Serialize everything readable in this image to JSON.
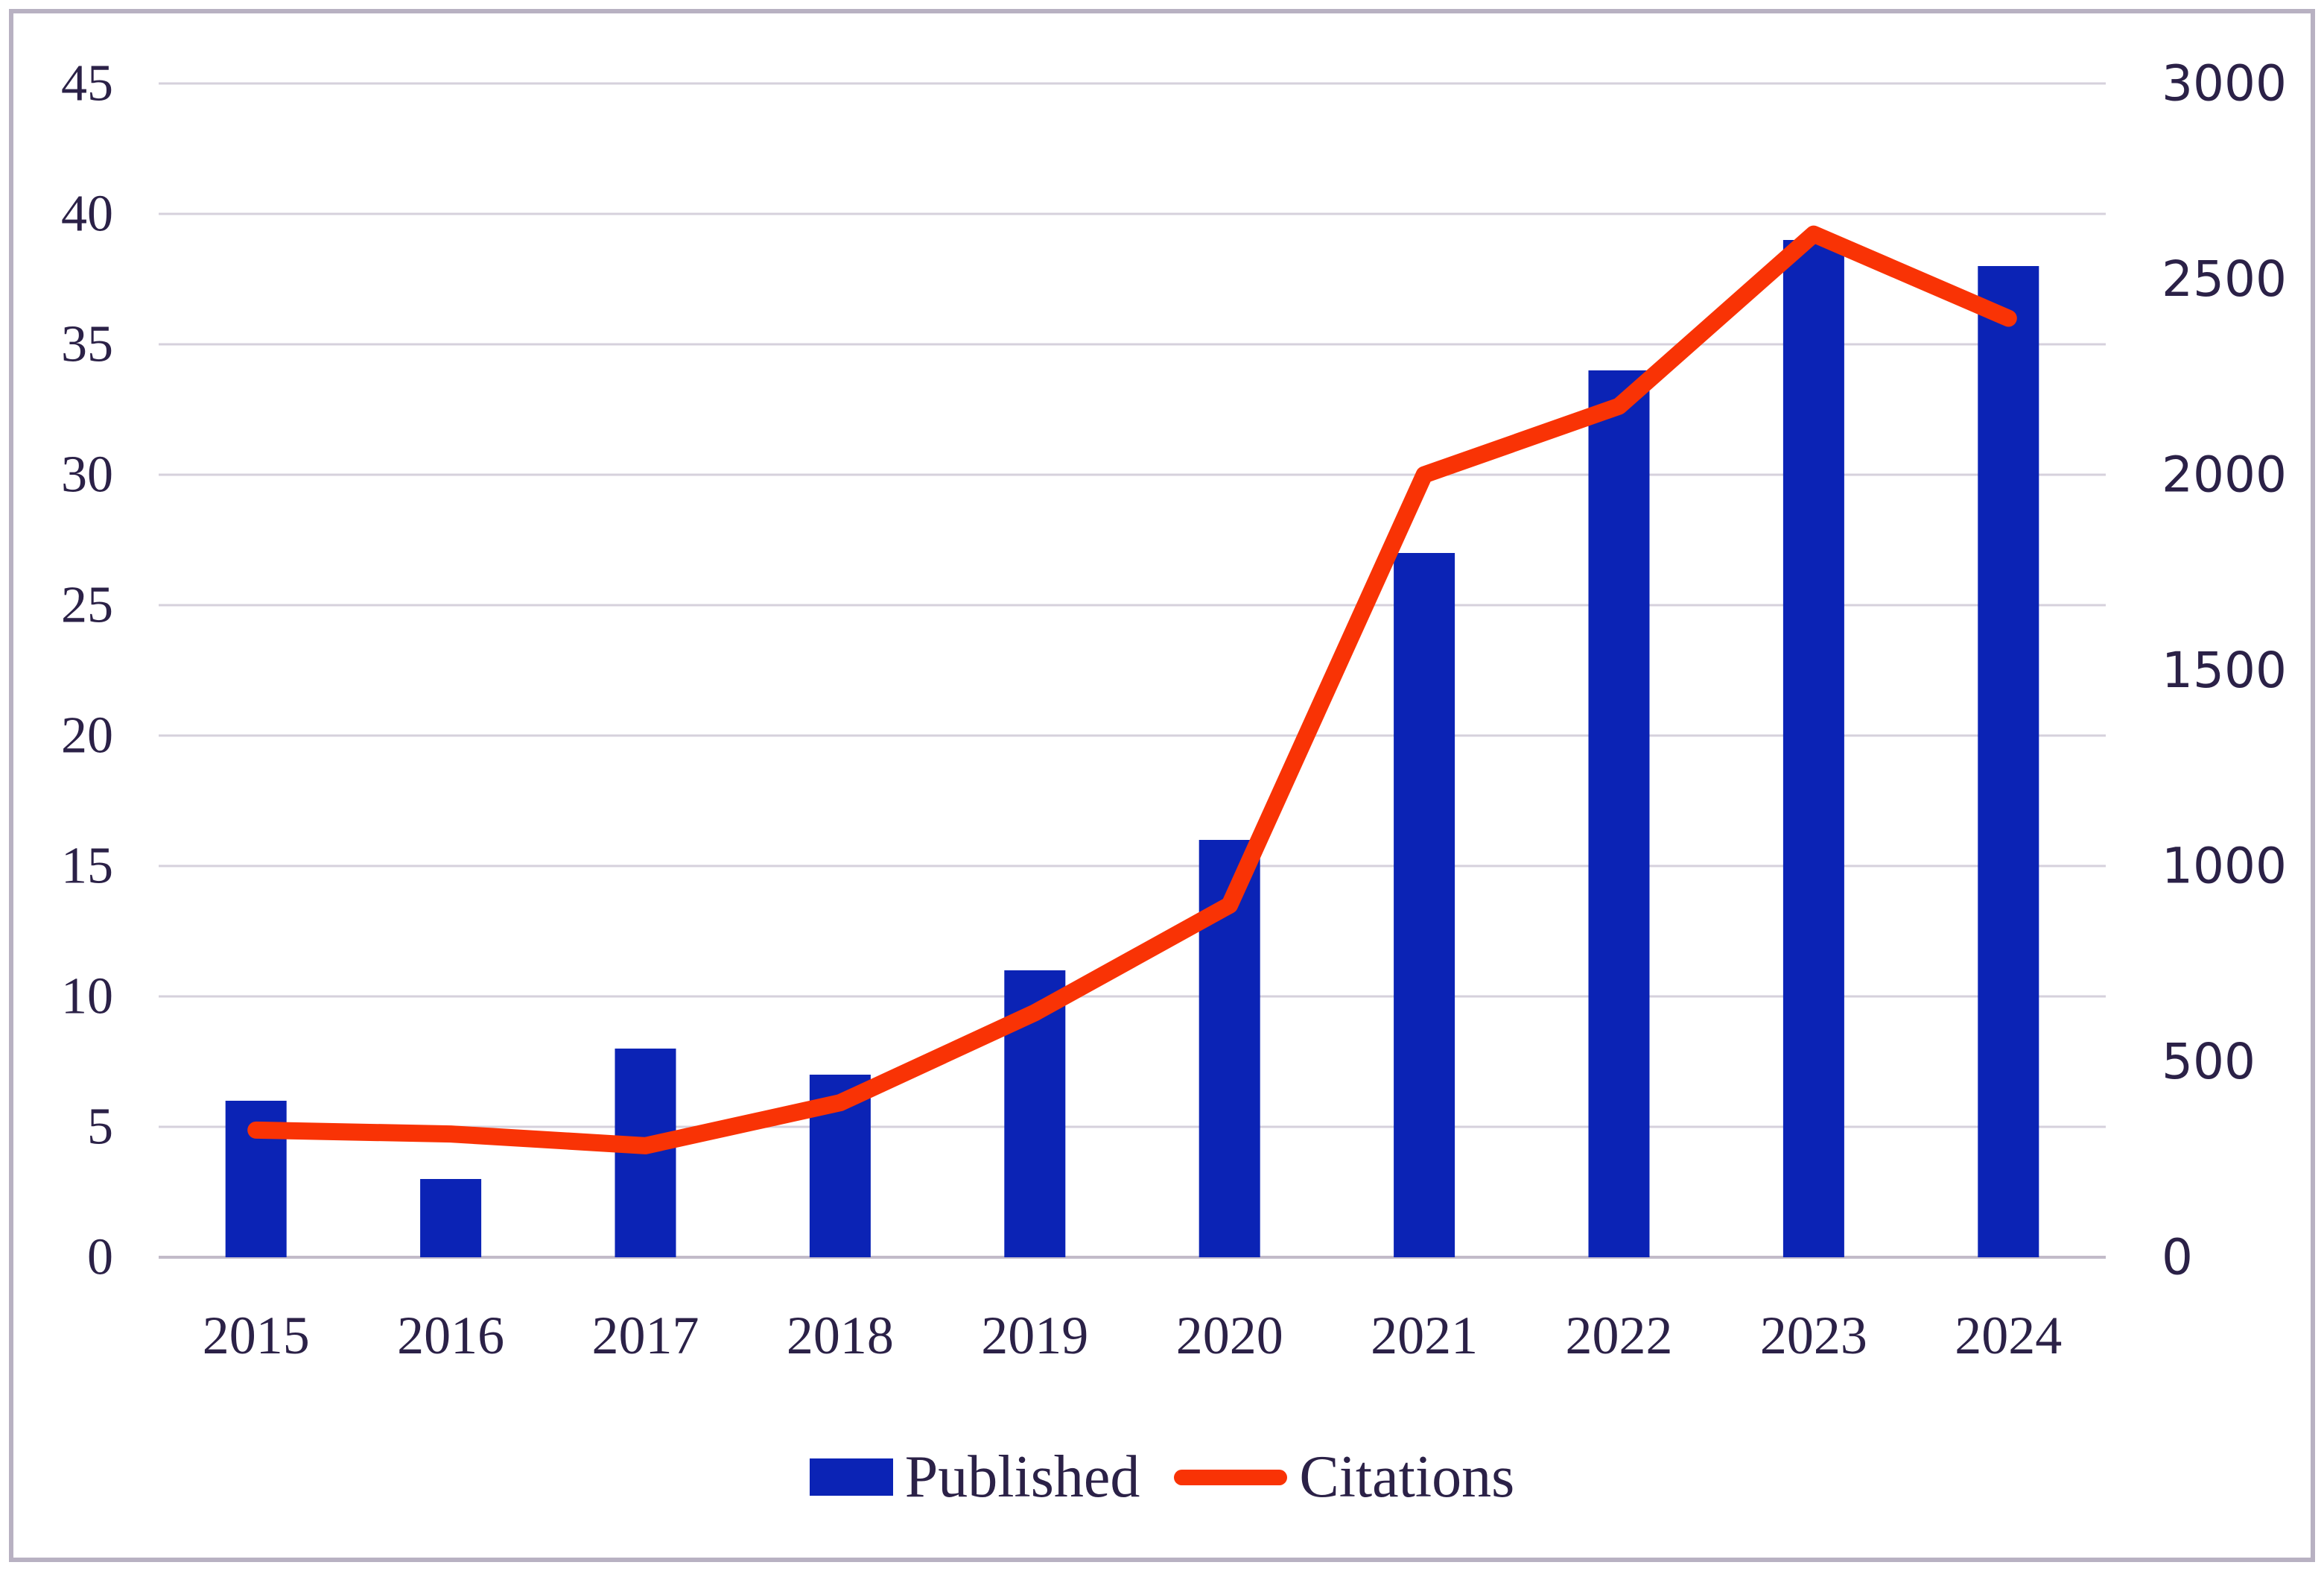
{
  "chart_data": {
    "type": "bar+line",
    "title": "",
    "categories": [
      "2015",
      "2016",
      "2017",
      "2018",
      "2019",
      "2020",
      "2021",
      "2022",
      "2023",
      "2024"
    ],
    "series": [
      {
        "name": "Published",
        "type": "bar",
        "axis": "left",
        "values": [
          6,
          3,
          8,
          7,
          11,
          16,
          27,
          34,
          39,
          38
        ]
      },
      {
        "name": "Citations",
        "type": "line",
        "axis": "right",
        "values": [
          325,
          315,
          285,
          395,
          625,
          900,
          2000,
          2175,
          2615,
          2400
        ]
      }
    ],
    "left_axis": {
      "min": 0,
      "max": 45,
      "step": 5,
      "tick_labels": [
        "0",
        "5",
        "10",
        "15",
        "20",
        "25",
        "30",
        "35",
        "40",
        "45"
      ]
    },
    "right_axis": {
      "min": 0,
      "max": 3000,
      "step": 500,
      "tick_labels": [
        "0",
        "500",
        "1000",
        "1500",
        "2000",
        "2500",
        "3000"
      ]
    },
    "grid": true,
    "legend_position": "bottom",
    "colors": {
      "bar": "#0b23b5",
      "line": "#f93305",
      "text": "#2b2147",
      "gridline": "#d6d1dc",
      "axis_line": "#c2bbc9",
      "frame_border": "#b8b1c2"
    }
  }
}
